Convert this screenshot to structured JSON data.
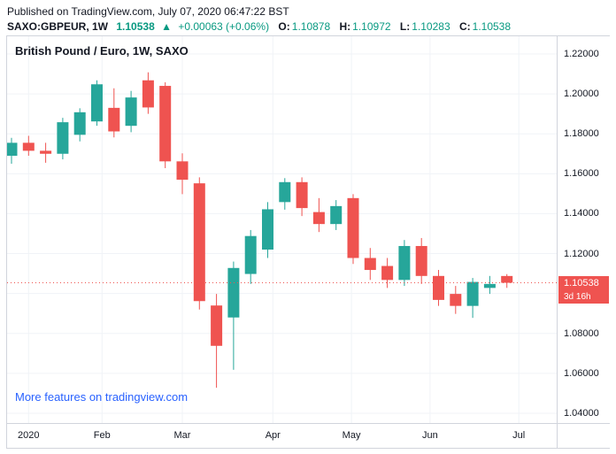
{
  "header": {
    "published_line": "Published on TradingView.com, July 07, 2020 06:47:22 BST",
    "symbol": "SAXO:GBPEUR, 1W",
    "last_price": "1.10538",
    "change_arrow": "▲",
    "change": "+0.00063 (+0.06%)",
    "ohlc": [
      {
        "label": "O:",
        "value": "1.10878"
      },
      {
        "label": "H:",
        "value": "1.10972"
      },
      {
        "label": "L:",
        "value": "1.10283"
      },
      {
        "label": "C:",
        "value": "1.10538"
      }
    ]
  },
  "chart": {
    "title": "British Pound / Euro, 1W, SAXO",
    "link_text": "More features on tradingview.com",
    "price_label": "1.10538",
    "countdown_label": "3d 16h"
  },
  "colors": {
    "up": "#26a69a",
    "down": "#ef5350",
    "accent_teal": "#089981",
    "link_blue": "#2962ff",
    "text_dark": "#131722",
    "grid": "#f0f3f7",
    "border": "#d1d4dc"
  },
  "chart_data": {
    "type": "candlestick",
    "title": "British Pound / Euro, 1W, SAXO",
    "symbol": "GBPEUR",
    "interval": "1W",
    "y_ticks": [
      "1.22000",
      "1.20000",
      "1.18000",
      "1.16000",
      "1.14000",
      "1.12000",
      "1.10000",
      "1.08000",
      "1.06000",
      "1.04000"
    ],
    "y_top_price": 1.22885,
    "y_bottom_price": 1.03513,
    "price_line": 1.10538,
    "x_labels": [
      {
        "label": "2020",
        "i": 1.0
      },
      {
        "label": "Feb",
        "i": 5.3
      },
      {
        "label": "Mar",
        "i": 10.0
      },
      {
        "label": "Apr",
        "i": 15.3
      },
      {
        "label": "May",
        "i": 19.9
      },
      {
        "label": "Jun",
        "i": 24.5
      },
      {
        "label": "Jul",
        "i": 29.7
      }
    ],
    "candles": [
      {
        "o": 1.169,
        "h": 1.178,
        "l": 1.165,
        "c": 1.1755
      },
      {
        "o": 1.1755,
        "h": 1.179,
        "l": 1.169,
        "c": 1.1715
      },
      {
        "o": 1.1715,
        "h": 1.1755,
        "l": 1.1655,
        "c": 1.17
      },
      {
        "o": 1.17,
        "h": 1.188,
        "l": 1.1672,
        "c": 1.1858
      },
      {
        "o": 1.1795,
        "h": 1.1928,
        "l": 1.1762,
        "c": 1.1908
      },
      {
        "o": 1.1862,
        "h": 1.2068,
        "l": 1.184,
        "c": 1.2048
      },
      {
        "o": 1.193,
        "h": 1.2028,
        "l": 1.1782,
        "c": 1.1812
      },
      {
        "o": 1.184,
        "h": 1.2015,
        "l": 1.1808,
        "c": 1.1982
      },
      {
        "o": 1.2068,
        "h": 1.2108,
        "l": 1.19,
        "c": 1.1932
      },
      {
        "o": 1.204,
        "h": 1.2058,
        "l": 1.1628,
        "c": 1.1662
      },
      {
        "o": 1.1662,
        "h": 1.1702,
        "l": 1.1498,
        "c": 1.157
      },
      {
        "o": 1.1552,
        "h": 1.1582,
        "l": 1.092,
        "c": 1.0962
      },
      {
        "o": 1.094,
        "h": 1.0998,
        "l": 1.0528,
        "c": 1.0738
      },
      {
        "o": 1.088,
        "h": 1.116,
        "l": 1.0618,
        "c": 1.1128
      },
      {
        "o": 1.1098,
        "h": 1.1318,
        "l": 1.1048,
        "c": 1.1288
      },
      {
        "o": 1.122,
        "h": 1.1458,
        "l": 1.1178,
        "c": 1.1422
      },
      {
        "o": 1.1458,
        "h": 1.1578,
        "l": 1.142,
        "c": 1.1558
      },
      {
        "o": 1.1558,
        "h": 1.1582,
        "l": 1.1388,
        "c": 1.1428
      },
      {
        "o": 1.1408,
        "h": 1.1478,
        "l": 1.1308,
        "c": 1.1348
      },
      {
        "o": 1.1348,
        "h": 1.1468,
        "l": 1.1318,
        "c": 1.1438
      },
      {
        "o": 1.1478,
        "h": 1.1498,
        "l": 1.1148,
        "c": 1.1178
      },
      {
        "o": 1.1178,
        "h": 1.1228,
        "l": 1.1068,
        "c": 1.1118
      },
      {
        "o": 1.1138,
        "h": 1.1178,
        "l": 1.1028,
        "c": 1.1068
      },
      {
        "o": 1.1068,
        "h": 1.1268,
        "l": 1.1038,
        "c": 1.1238
      },
      {
        "o": 1.1238,
        "h": 1.1278,
        "l": 1.1048,
        "c": 1.1088
      },
      {
        "o": 1.1088,
        "h": 1.1118,
        "l": 1.0938,
        "c": 1.0968
      },
      {
        "o": 1.0998,
        "h": 1.1038,
        "l": 1.0898,
        "c": 1.0938
      },
      {
        "o": 1.0938,
        "h": 1.1078,
        "l": 1.0878,
        "c": 1.1058
      },
      {
        "o": 1.1028,
        "h": 1.1088,
        "l": 1.0998,
        "c": 1.1048
      },
      {
        "o": 1.10878,
        "h": 1.10972,
        "l": 1.10283,
        "c": 1.10538
      }
    ]
  }
}
